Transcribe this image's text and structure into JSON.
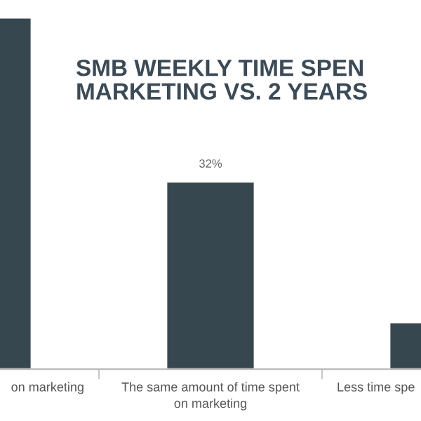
{
  "chart_data": {
    "type": "bar",
    "title": "SMB WEEKLY TIME SPEN\nMARKETING VS. 2 YEARS",
    "categories": [
      "on marketing",
      "The same amount of time spent\non marketing",
      "Less time spe"
    ],
    "values": [
      60,
      32,
      8
    ],
    "value_labels": [
      null,
      "32%",
      null
    ],
    "color": "#37474f",
    "legend": false
  }
}
